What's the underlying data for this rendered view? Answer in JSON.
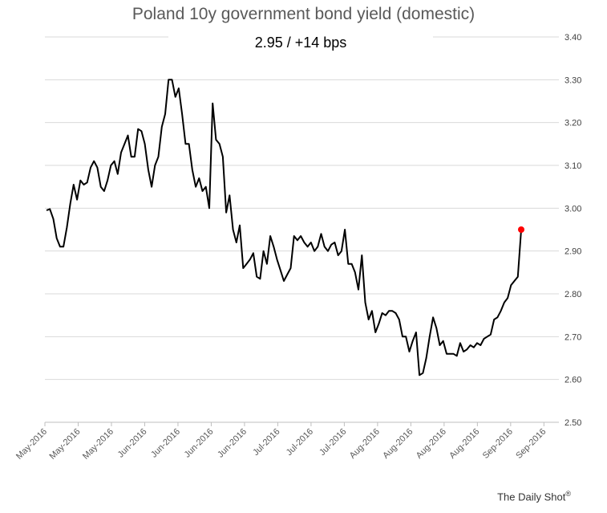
{
  "chart_data": {
    "type": "line",
    "title": "Poland 10y government bond yield (domestic)",
    "annotation": "2.95  /  +14 bps",
    "source": "The Daily Shot",
    "source_mark": "®",
    "ylim": [
      2.5,
      3.4
    ],
    "yticks": [
      "2.50",
      "2.60",
      "2.70",
      "2.80",
      "2.90",
      "3.00",
      "3.10",
      "3.20",
      "3.30",
      "3.40"
    ],
    "xtick_labels": [
      "May-2016",
      "May-2016",
      "May-2016",
      "Jun-2016",
      "Jun-2016",
      "Jun-2016",
      "Jun-2016",
      "Jul-2016",
      "Jul-2016",
      "Jul-2016",
      "Aug-2016",
      "Aug-2016",
      "Aug-2016",
      "Aug-2016",
      "Sep-2016",
      "Sep-2016"
    ],
    "grid": true,
    "y_axis_position": "right",
    "line_color": "#000000",
    "marker_color": "#ff0000",
    "series": [
      {
        "values": [
          2.995,
          2.998,
          2.975,
          2.93,
          2.91,
          2.91,
          2.955,
          3.01,
          3.055,
          3.02,
          3.065,
          3.055,
          3.06,
          3.095,
          3.11,
          3.095,
          3.05,
          3.04,
          3.065,
          3.1,
          3.11,
          3.08,
          3.13,
          3.15,
          3.17,
          3.12,
          3.12,
          3.185,
          3.18,
          3.15,
          3.09,
          3.05,
          3.1,
          3.12,
          3.19,
          3.22,
          3.3,
          3.3,
          3.26,
          3.28,
          3.22,
          3.15,
          3.15,
          3.09,
          3.05,
          3.07,
          3.04,
          3.05,
          3.0,
          3.245,
          3.16,
          3.15,
          3.12,
          2.99,
          3.03,
          2.95,
          2.92,
          2.96,
          2.86,
          2.87,
          2.88,
          2.895,
          2.84,
          2.835,
          2.9,
          2.87,
          2.935,
          2.91,
          2.88,
          2.855,
          2.83,
          2.845,
          2.86,
          2.935,
          2.925,
          2.935,
          2.92,
          2.91,
          2.92,
          2.9,
          2.91,
          2.94,
          2.91,
          2.9,
          2.915,
          2.92,
          2.89,
          2.9,
          2.95,
          2.87,
          2.87,
          2.85,
          2.81,
          2.89,
          2.78,
          2.74,
          2.76,
          2.71,
          2.73,
          2.755,
          2.75,
          2.76,
          2.76,
          2.755,
          2.74,
          2.7,
          2.7,
          2.665,
          2.69,
          2.71,
          2.61,
          2.615,
          2.65,
          2.7,
          2.745,
          2.72,
          2.68,
          2.69,
          2.66,
          2.66,
          2.66,
          2.655,
          2.685,
          2.665,
          2.67,
          2.68,
          2.675,
          2.685,
          2.68,
          2.695,
          2.7,
          2.705,
          2.74,
          2.745,
          2.76,
          2.78,
          2.79,
          2.82,
          2.83,
          2.84,
          2.95
        ]
      }
    ],
    "last_value": 2.95
  }
}
